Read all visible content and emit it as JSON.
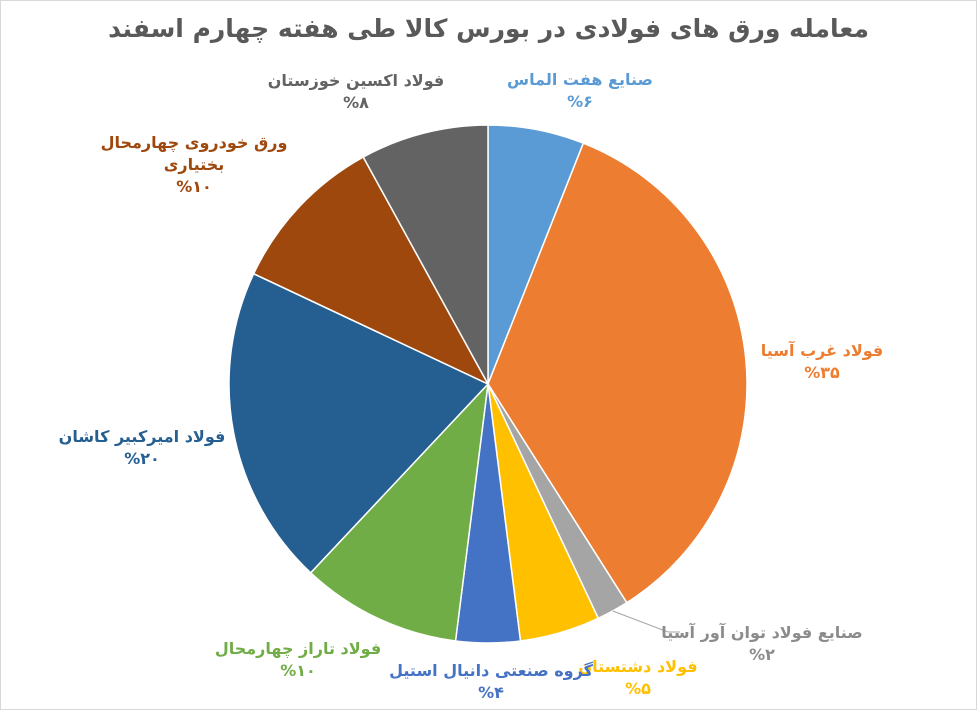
{
  "chart_data": {
    "type": "pie",
    "title": "معامله ورق های فولادی در بورس کالا طی هفته چهارم اسفند",
    "legend": "none",
    "slices": [
      {
        "name": "صنایع هفت الماس",
        "value": 6,
        "label_lines": [
          "صنایع هفت الماس"
        ],
        "value_label": "%۶",
        "color": "#5b9bd5"
      },
      {
        "name": "فولاد غرب آسیا",
        "value": 35,
        "label_lines": [
          "فولاد غرب آسیا"
        ],
        "value_label": "%۳۵",
        "color": "#ed7d31"
      },
      {
        "name": "صنایع فولاد توان آور آسیا",
        "value": 2,
        "label_lines": [
          "صنایع فولاد توان آور آسیا"
        ],
        "value_label": "%۲",
        "color": "#a5a5a5"
      },
      {
        "name": "فولاد دشتستان",
        "value": 5,
        "label_lines": [
          "فولاد دشتستان"
        ],
        "value_label": "%۵",
        "color": "#ffc000"
      },
      {
        "name": "گروه صنعتی دانیال استیل",
        "value": 4,
        "label_lines": [
          "گروه صنعتی دانیال استیل"
        ],
        "value_label": "%۴",
        "color": "#4472c4"
      },
      {
        "name": "فولاد تاراز چهارمحال",
        "value": 10,
        "label_lines": [
          "فولاد تاراز چهارمحال"
        ],
        "value_label": "%۱۰",
        "color": "#70ad47"
      },
      {
        "name": "فولاد امیرکبیر کاشان",
        "value": 20,
        "label_lines": [
          "فولاد امیرکبیر کاشان"
        ],
        "value_label": "%۲۰",
        "color": "#255e91"
      },
      {
        "name": "ورق خودروی چهارمحال بختیاری",
        "value": 10,
        "label_lines": [
          "ورق خودروی چهارمحال",
          "بختیاری"
        ],
        "value_label": "%۱۰",
        "color": "#9e480e"
      },
      {
        "name": "فولاد اکسین خوزستان",
        "value": 8,
        "label_lines": [
          "فولاد اکسین خوزستان"
        ],
        "value_label": "%۸",
        "color": "#636363"
      }
    ]
  }
}
